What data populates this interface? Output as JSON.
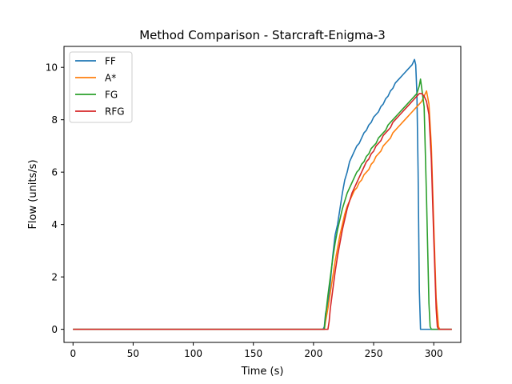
{
  "chart_data": {
    "type": "line",
    "title": "Method Comparison - Starcraft-Enigma-3",
    "xlabel": "Time (s)",
    "ylabel": "Flow (units/s)",
    "xlim": [
      -7.5,
      322.5
    ],
    "ylim": [
      -0.5,
      10.8
    ],
    "xticks": [
      0,
      50,
      100,
      150,
      200,
      250,
      300
    ],
    "yticks": [
      0,
      2,
      4,
      6,
      8,
      10
    ],
    "grid": false,
    "legend_position": "top-left",
    "series": [
      {
        "name": "FF",
        "color": "#1f77b4",
        "points": [
          [
            0,
            0
          ],
          [
            208,
            0
          ],
          [
            209,
            0.1
          ],
          [
            210,
            0.6
          ],
          [
            212,
            1.0
          ],
          [
            214,
            1.8
          ],
          [
            216,
            2.8
          ],
          [
            218,
            3.6
          ],
          [
            220,
            4.0
          ],
          [
            222,
            4.6
          ],
          [
            224,
            5.2
          ],
          [
            226,
            5.7
          ],
          [
            228,
            6.0
          ],
          [
            230,
            6.4
          ],
          [
            232,
            6.6
          ],
          [
            234,
            6.8
          ],
          [
            236,
            7.0
          ],
          [
            238,
            7.1
          ],
          [
            240,
            7.3
          ],
          [
            242,
            7.5
          ],
          [
            244,
            7.6
          ],
          [
            246,
            7.8
          ],
          [
            248,
            7.9
          ],
          [
            250,
            8.1
          ],
          [
            252,
            8.2
          ],
          [
            254,
            8.3
          ],
          [
            256,
            8.5
          ],
          [
            258,
            8.6
          ],
          [
            260,
            8.8
          ],
          [
            262,
            8.9
          ],
          [
            264,
            9.1
          ],
          [
            266,
            9.2
          ],
          [
            268,
            9.4
          ],
          [
            270,
            9.5
          ],
          [
            272,
            9.6
          ],
          [
            274,
            9.7
          ],
          [
            276,
            9.8
          ],
          [
            278,
            9.9
          ],
          [
            280,
            10.0
          ],
          [
            282,
            10.1
          ],
          [
            284,
            10.3
          ],
          [
            285,
            10.1
          ],
          [
            286,
            9.0
          ],
          [
            287,
            6.0
          ],
          [
            288,
            1.5
          ],
          [
            289,
            0
          ],
          [
            315,
            0
          ]
        ]
      },
      {
        "name": "A*",
        "color": "#ff7f0e",
        "points": [
          [
            0,
            0
          ],
          [
            209,
            0
          ],
          [
            210,
            0.3
          ],
          [
            212,
            0.8
          ],
          [
            214,
            1.4
          ],
          [
            216,
            2.0
          ],
          [
            218,
            2.6
          ],
          [
            220,
            3.1
          ],
          [
            222,
            3.6
          ],
          [
            224,
            4.0
          ],
          [
            226,
            4.4
          ],
          [
            228,
            4.7
          ],
          [
            230,
            4.9
          ],
          [
            232,
            5.1
          ],
          [
            234,
            5.3
          ],
          [
            236,
            5.4
          ],
          [
            238,
            5.6
          ],
          [
            240,
            5.7
          ],
          [
            242,
            5.9
          ],
          [
            244,
            6.0
          ],
          [
            246,
            6.1
          ],
          [
            248,
            6.3
          ],
          [
            250,
            6.4
          ],
          [
            252,
            6.6
          ],
          [
            254,
            6.7
          ],
          [
            256,
            6.8
          ],
          [
            258,
            7.0
          ],
          [
            260,
            7.1
          ],
          [
            262,
            7.2
          ],
          [
            264,
            7.3
          ],
          [
            266,
            7.5
          ],
          [
            268,
            7.6
          ],
          [
            270,
            7.7
          ],
          [
            272,
            7.8
          ],
          [
            274,
            7.9
          ],
          [
            276,
            8.0
          ],
          [
            278,
            8.1
          ],
          [
            280,
            8.2
          ],
          [
            282,
            8.3
          ],
          [
            284,
            8.4
          ],
          [
            286,
            8.5
          ],
          [
            288,
            8.6
          ],
          [
            290,
            8.7
          ],
          [
            292,
            8.9
          ],
          [
            294,
            9.1
          ],
          [
            296,
            8.6
          ],
          [
            298,
            7.0
          ],
          [
            300,
            4.0
          ],
          [
            302,
            1.2
          ],
          [
            304,
            0.1
          ],
          [
            305,
            0
          ],
          [
            315,
            0
          ]
        ]
      },
      {
        "name": "FG",
        "color": "#2ca02c",
        "points": [
          [
            0,
            0
          ],
          [
            209,
            0
          ],
          [
            210,
            0.5
          ],
          [
            212,
            1.3
          ],
          [
            214,
            2.0
          ],
          [
            216,
            2.7
          ],
          [
            218,
            3.3
          ],
          [
            220,
            3.8
          ],
          [
            222,
            4.2
          ],
          [
            224,
            4.6
          ],
          [
            226,
            4.9
          ],
          [
            228,
            5.2
          ],
          [
            230,
            5.4
          ],
          [
            232,
            5.6
          ],
          [
            234,
            5.8
          ],
          [
            236,
            6.0
          ],
          [
            238,
            6.1
          ],
          [
            240,
            6.3
          ],
          [
            242,
            6.4
          ],
          [
            244,
            6.6
          ],
          [
            246,
            6.7
          ],
          [
            248,
            6.9
          ],
          [
            250,
            7.0
          ],
          [
            252,
            7.1
          ],
          [
            254,
            7.3
          ],
          [
            256,
            7.4
          ],
          [
            258,
            7.5
          ],
          [
            260,
            7.6
          ],
          [
            262,
            7.8
          ],
          [
            264,
            7.9
          ],
          [
            266,
            8.0
          ],
          [
            268,
            8.1
          ],
          [
            270,
            8.2
          ],
          [
            272,
            8.3
          ],
          [
            274,
            8.4
          ],
          [
            276,
            8.5
          ],
          [
            278,
            8.6
          ],
          [
            280,
            8.7
          ],
          [
            282,
            8.8
          ],
          [
            284,
            8.9
          ],
          [
            286,
            9.0
          ],
          [
            288,
            9.3
          ],
          [
            289,
            9.55
          ],
          [
            290,
            9.2
          ],
          [
            292,
            8.5
          ],
          [
            294,
            5.0
          ],
          [
            296,
            1.0
          ],
          [
            297,
            0.1
          ],
          [
            298,
            0
          ],
          [
            315,
            0
          ]
        ]
      },
      {
        "name": "RFG",
        "color": "#d62728",
        "points": [
          [
            0,
            0
          ],
          [
            212,
            0
          ],
          [
            213,
            0.3
          ],
          [
            214,
            0.8
          ],
          [
            216,
            1.5
          ],
          [
            218,
            2.2
          ],
          [
            220,
            2.8
          ],
          [
            222,
            3.3
          ],
          [
            224,
            3.8
          ],
          [
            226,
            4.2
          ],
          [
            228,
            4.6
          ],
          [
            230,
            4.9
          ],
          [
            232,
            5.2
          ],
          [
            234,
            5.4
          ],
          [
            236,
            5.6
          ],
          [
            238,
            5.8
          ],
          [
            240,
            6.0
          ],
          [
            242,
            6.2
          ],
          [
            244,
            6.4
          ],
          [
            246,
            6.5
          ],
          [
            248,
            6.7
          ],
          [
            250,
            6.8
          ],
          [
            252,
            7.0
          ],
          [
            254,
            7.1
          ],
          [
            256,
            7.2
          ],
          [
            258,
            7.4
          ],
          [
            260,
            7.5
          ],
          [
            262,
            7.6
          ],
          [
            264,
            7.7
          ],
          [
            266,
            7.9
          ],
          [
            268,
            8.0
          ],
          [
            270,
            8.1
          ],
          [
            272,
            8.2
          ],
          [
            274,
            8.3
          ],
          [
            276,
            8.4
          ],
          [
            278,
            8.5
          ],
          [
            280,
            8.6
          ],
          [
            282,
            8.7
          ],
          [
            284,
            8.8
          ],
          [
            286,
            8.9
          ],
          [
            288,
            9.0
          ],
          [
            290,
            9.0
          ],
          [
            292,
            8.9
          ],
          [
            294,
            8.7
          ],
          [
            296,
            8.2
          ],
          [
            298,
            6.5
          ],
          [
            300,
            3.5
          ],
          [
            302,
            0.8
          ],
          [
            303,
            0.1
          ],
          [
            304,
            0
          ],
          [
            315,
            0
          ]
        ]
      }
    ]
  }
}
